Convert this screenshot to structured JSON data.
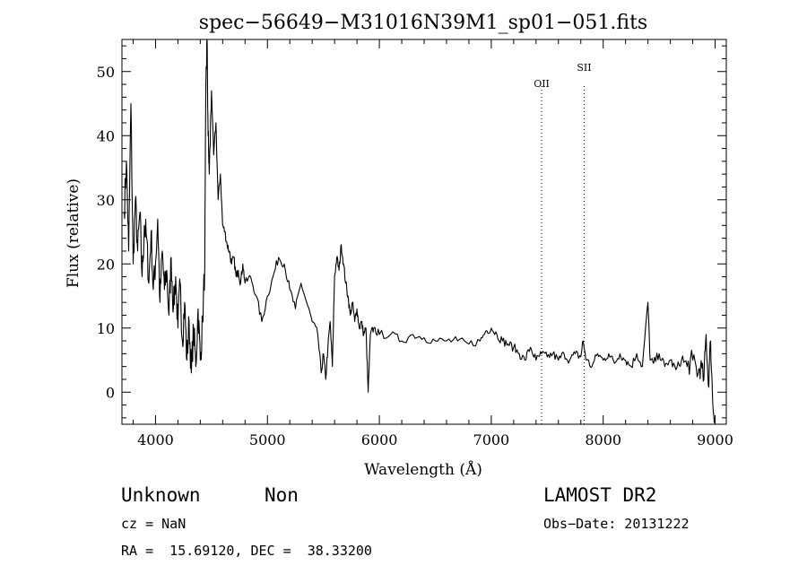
{
  "chart_data": {
    "type": "line",
    "title": "spec−56649−M31016N39M1_sp01−051.fits",
    "xlabel": "Wavelength (Å)",
    "ylabel": "Flux (relative)",
    "xlim": [
      3700,
      9100
    ],
    "ylim": [
      -5,
      55
    ],
    "xticks": [
      4000,
      5000,
      6000,
      7000,
      8000,
      9000
    ],
    "yticks": [
      0,
      10,
      20,
      30,
      40,
      50
    ],
    "grid": false,
    "series": [
      {
        "x": [
          3720,
          3740,
          3760,
          3780,
          3800,
          3820,
          3840,
          3860,
          3880,
          3900,
          3920,
          3940,
          3960,
          3980,
          4000,
          4020,
          4040,
          4060,
          4080,
          4100,
          4120,
          4140,
          4160,
          4180,
          4200,
          4220,
          4240,
          4260,
          4280,
          4300,
          4320,
          4340,
          4360,
          4380,
          4400,
          4420,
          4440,
          4450,
          4460,
          4470,
          4480,
          4500,
          4520,
          4540,
          4560,
          4580,
          4600,
          4620,
          4640,
          4660,
          4680,
          4700,
          4720,
          4740,
          4760,
          4780,
          4800,
          4850,
          4900,
          4950,
          5000,
          5050,
          5100,
          5150,
          5200,
          5250,
          5300,
          5350,
          5400,
          5450,
          5480,
          5500,
          5520,
          5540,
          5560,
          5580,
          5600,
          5620,
          5640,
          5660,
          5680,
          5700,
          5720,
          5740,
          5760,
          5780,
          5800,
          5820,
          5840,
          5860,
          5880,
          5900,
          5920,
          5950,
          6000,
          6100,
          6200,
          6300,
          6400,
          6500,
          6600,
          6700,
          6800,
          6900,
          6950,
          7000,
          7050,
          7100,
          7150,
          7200,
          7250,
          7300,
          7350,
          7400,
          7450,
          7500,
          7550,
          7600,
          7650,
          7700,
          7750,
          7800,
          7820,
          7850,
          7900,
          7950,
          8000,
          8050,
          8100,
          8150,
          8200,
          8250,
          8300,
          8350,
          8400,
          8420,
          8450,
          8500,
          8550,
          8600,
          8650,
          8700,
          8750,
          8800,
          8850,
          8870,
          8900,
          8920,
          8940,
          8960,
          8980,
          9000
        ],
        "y": [
          28,
          36,
          22,
          45,
          20,
          30,
          22,
          28,
          18,
          26,
          24,
          17,
          25,
          16,
          20,
          27,
          14,
          22,
          16,
          19,
          12,
          21,
          13,
          18,
          10,
          17,
          8,
          14,
          5,
          11,
          3,
          10,
          4,
          13,
          5,
          11,
          20,
          48,
          55,
          40,
          34,
          47,
          37,
          42,
          30,
          34,
          26,
          25,
          23,
          22,
          20,
          21,
          18,
          19,
          17,
          20,
          17,
          18,
          15,
          11,
          15,
          18,
          21,
          20,
          16,
          13,
          17,
          14,
          11,
          9,
          3,
          6,
          2,
          7,
          11,
          4,
          18,
          21,
          19,
          23,
          20,
          17,
          15,
          12,
          14,
          11,
          13,
          10,
          11,
          9,
          10,
          0,
          9,
          10,
          9,
          9,
          8,
          9,
          8.5,
          8,
          8,
          8,
          7.5,
          8,
          9.5,
          10,
          9,
          8,
          7.5,
          7,
          6,
          5,
          7,
          5,
          6,
          5.5,
          6,
          5,
          6,
          5,
          6,
          5.5,
          8,
          5,
          4,
          6,
          5,
          6,
          4.5,
          6,
          5,
          4,
          6,
          4,
          14,
          5,
          4.5,
          6,
          4,
          5,
          3.5,
          5,
          4,
          5,
          3,
          4,
          2,
          9,
          1,
          8,
          -2,
          -4
        ]
      }
    ],
    "annotations": [
      {
        "label": "OII",
        "x": 7450
      },
      {
        "label": "SII",
        "x": 7830
      }
    ]
  },
  "info": {
    "object_class": "Unknown",
    "subclass": "Non",
    "survey": "LAMOST DR2",
    "cz": "cz = NaN",
    "obs_date": "Obs−Date: 20131222",
    "coords": "RA =  15.69120, DEC =  38.33200"
  }
}
